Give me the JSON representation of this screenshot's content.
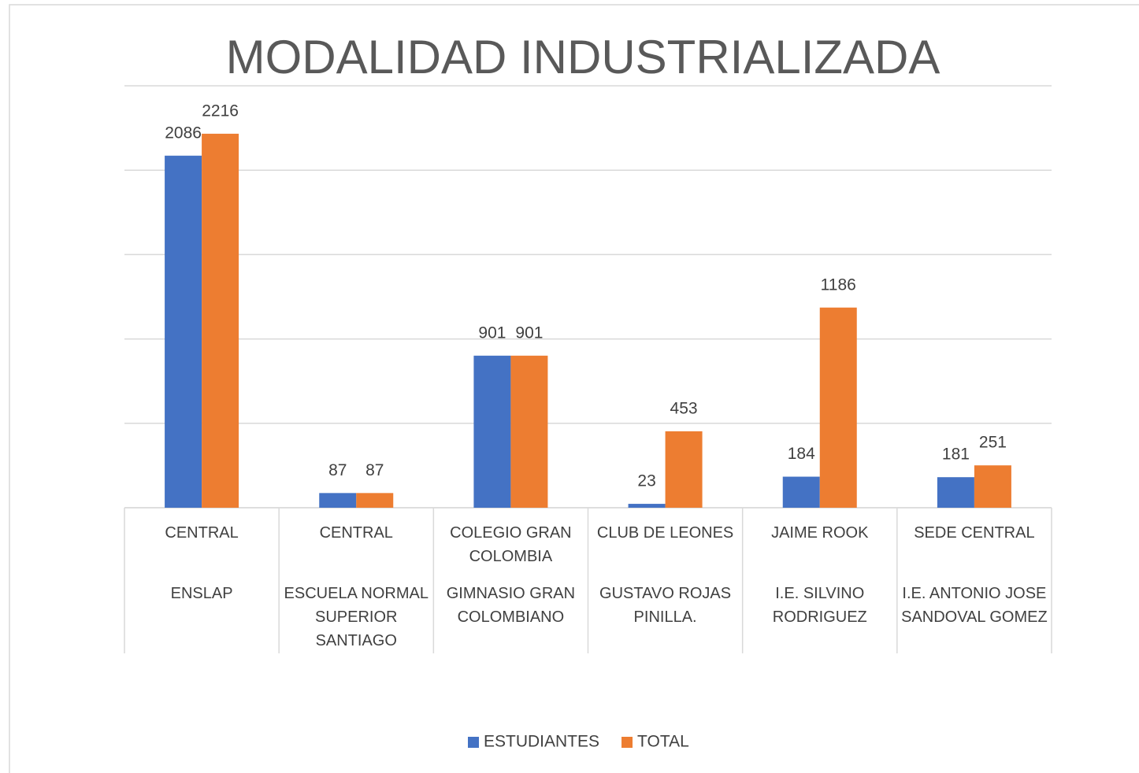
{
  "chart_data": {
    "type": "bar",
    "title": "MODALIDAD INDUSTRIALIZADA",
    "categories": [
      "CENTRAL",
      "CENTRAL",
      "COLEGIO GRAN COLOMBIA",
      "CLUB DE LEONES",
      "JAIME ROOK",
      "SEDE CENTRAL"
    ],
    "category_groups": [
      "ENSLAP",
      "ESCUELA NORMAL SUPERIOR SANTIAGO",
      "GIMNASIO GRAN COLOMBIANO",
      "GUSTAVO ROJAS PINILLA.",
      "I.E. SILVINO RODRIGUEZ",
      "I.E. ANTONIO JOSE SANDOVAL GOMEZ"
    ],
    "series": [
      {
        "name": "ESTUDIANTES",
        "color": "#4472c4",
        "values": [
          2086,
          87,
          901,
          23,
          184,
          181
        ]
      },
      {
        "name": "TOTAL",
        "color": "#ed7d31",
        "values": [
          2216,
          87,
          901,
          453,
          1186,
          251
        ]
      }
    ],
    "ylim": [
      0,
      2500
    ],
    "yticks": [
      0,
      500,
      1000,
      1500,
      2000,
      2500
    ],
    "grid": true,
    "legend": "bottom"
  }
}
